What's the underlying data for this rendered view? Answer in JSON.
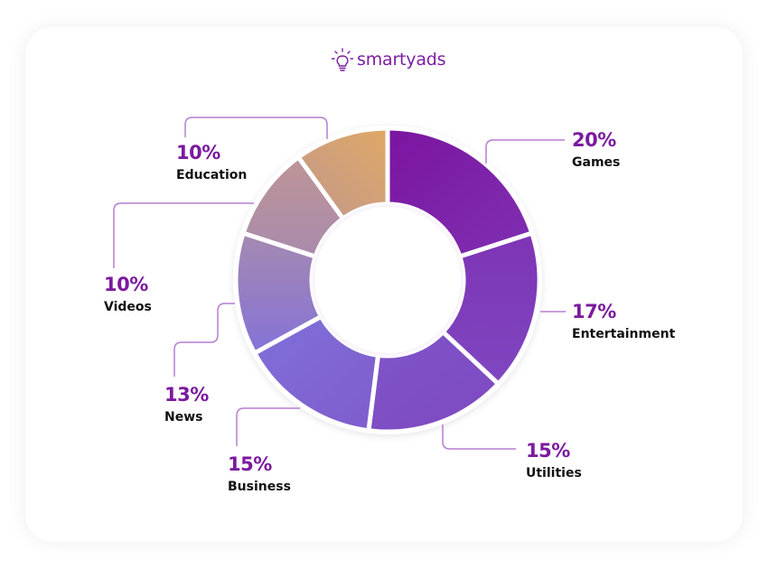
{
  "brand": {
    "name": "smartyads",
    "icon": "lightbulb-icon",
    "color": "#7b1fa2"
  },
  "chart_data": {
    "type": "pie",
    "subtype": "donut",
    "title": "",
    "categories": [
      "Games",
      "Entertainment",
      "Utilities",
      "Business",
      "News",
      "Videos",
      "Education"
    ],
    "values": [
      20,
      17,
      15,
      15,
      13,
      10,
      10
    ],
    "unit": "%",
    "labels": [
      "20%",
      "17%",
      "15%",
      "15%",
      "13%",
      "10%",
      "10%"
    ],
    "colors": {
      "Games": [
        "#7b14a0",
        "#7f2db0"
      ],
      "Entertainment": [
        "#7e32b4",
        "#7f45be"
      ],
      "Utilities": [
        "#7f4dc4",
        "#8052c8"
      ],
      "Business": [
        "#8470d8",
        "#7f5ccc"
      ],
      "News": [
        "#a08bb8",
        "#8a74d4"
      ],
      "Videos": [
        "#b89098",
        "#a88aa8"
      ],
      "Education": [
        "#dca86a",
        "#c49580"
      ]
    },
    "start_angle": "top, clockwise",
    "legend": "callout labels with leader lines"
  },
  "segments": [
    {
      "pct": "20%",
      "name": "Games"
    },
    {
      "pct": "17%",
      "name": "Entertainment"
    },
    {
      "pct": "15%",
      "name": "Utilities"
    },
    {
      "pct": "15%",
      "name": "Business"
    },
    {
      "pct": "13%",
      "name": "News"
    },
    {
      "pct": "10%",
      "name": "Videos"
    },
    {
      "pct": "10%",
      "name": "Education"
    }
  ],
  "accent": "#7b1a9e",
  "leader_color": "#b57fd0"
}
